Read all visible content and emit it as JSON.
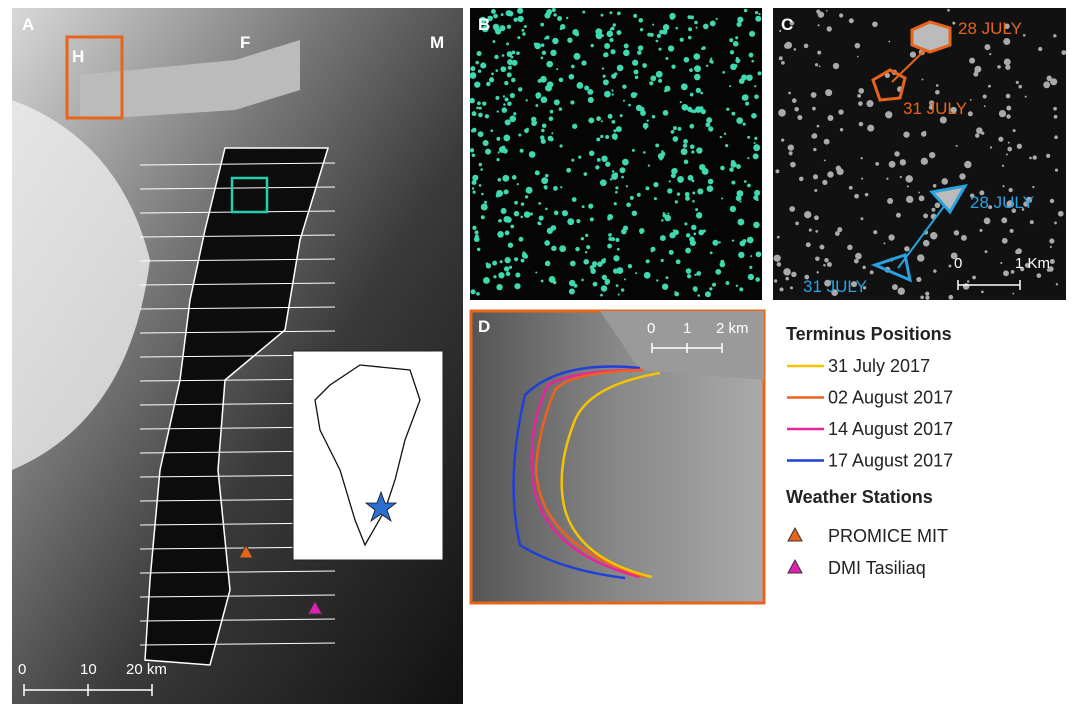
{
  "panels": {
    "a": {
      "label": "A",
      "place_labels": [
        "H",
        "F",
        "M"
      ],
      "scale_bar": [
        "0",
        "10",
        "20 km"
      ]
    },
    "b": {
      "label": "B"
    },
    "c": {
      "label": "C",
      "annotations": [
        {
          "text": "28 JULY",
          "color": "#e8641b"
        },
        {
          "text": "31 JULY",
          "color": "#e8641b"
        },
        {
          "text": "28 JULY",
          "color": "#29a3e0"
        },
        {
          "text": "31 JULY",
          "color": "#29a3e0"
        }
      ],
      "scale_bar": [
        "0",
        "1 Km"
      ]
    },
    "d": {
      "label": "D",
      "scale_bar": [
        "0",
        "1",
        "2 km"
      ]
    }
  },
  "legend": {
    "terminus": {
      "title": "Terminus Positions",
      "items": [
        {
          "label": "31 July 2017",
          "color": "#f5c400"
        },
        {
          "label": "02 August 2017",
          "color": "#f0601e"
        },
        {
          "label": "14 August 2017",
          "color": "#e8249c"
        },
        {
          "label": "17 August 2017",
          "color": "#1e3fd8"
        }
      ]
    },
    "weather": {
      "title": "Weather Stations",
      "items": [
        {
          "label": "PROMICE MIT",
          "color": "#e8641b"
        },
        {
          "label": "DMI Tasiliaq",
          "color": "#e020b0"
        }
      ]
    }
  }
}
